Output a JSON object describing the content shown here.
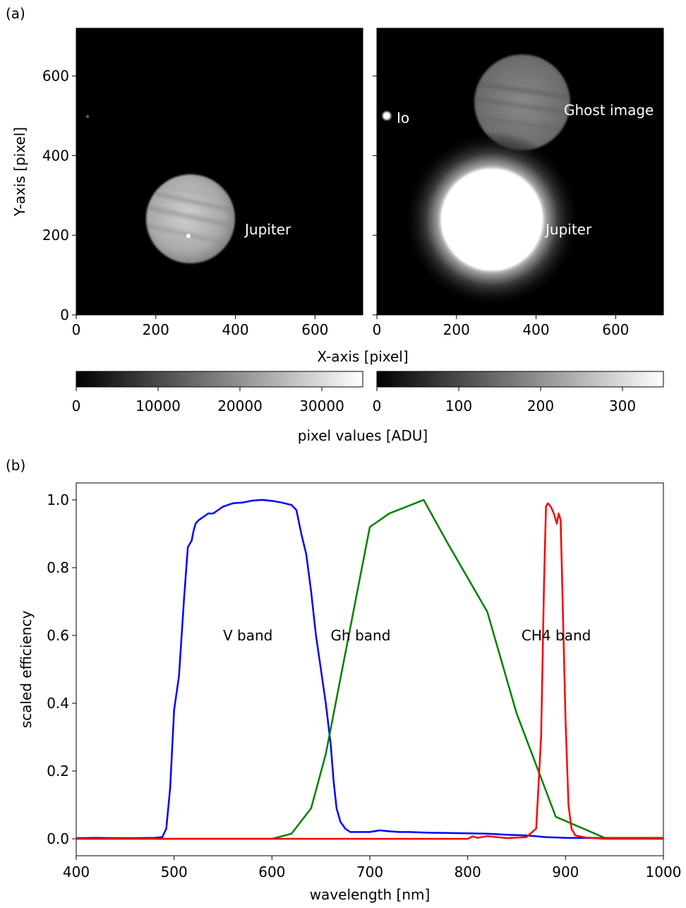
{
  "panel_a": {
    "label": "(a)",
    "xlabel": "X-axis [pixel]",
    "ylabel": "Y-axis [pixel]",
    "xlim": [
      0,
      720
    ],
    "ylim": [
      0,
      720
    ],
    "x_ticks": [
      0,
      200,
      400,
      600
    ],
    "y_ticks": [
      0,
      200,
      400,
      600
    ],
    "images": [
      {
        "description_labels": [
          {
            "text": "Jupiter"
          }
        ],
        "colorbar": {
          "range": [
            0,
            35000
          ],
          "ticks": [
            0,
            10000,
            20000,
            30000
          ],
          "tick_labels": [
            "0",
            "10000",
            "20000",
            "30000"
          ]
        }
      },
      {
        "description_labels": [
          {
            "text": "Io"
          },
          {
            "text": "Ghost image"
          },
          {
            "text": "Jupiter"
          }
        ],
        "colorbar": {
          "range": [
            0,
            350
          ],
          "ticks": [
            0,
            100,
            200,
            300
          ],
          "tick_labels": [
            "0",
            "100",
            "200",
            "300"
          ]
        }
      }
    ],
    "colorbar_label": "pixel values [ADU]"
  },
  "chart_data": [
    {
      "type": "line",
      "panel": "(b)",
      "xlabel": "wavelength [nm]",
      "ylabel": "scaled efficiency",
      "xlim": [
        400,
        1000
      ],
      "ylim": [
        -0.05,
        1.05
      ],
      "x_ticks": [
        400,
        500,
        600,
        700,
        800,
        900,
        1000
      ],
      "y_ticks": [
        0.0,
        0.2,
        0.4,
        0.6,
        0.8,
        1.0
      ],
      "y_tick_labels": [
        "0.0",
        "0.2",
        "0.4",
        "0.6",
        "0.8",
        "1.0"
      ],
      "grid": false,
      "annotations": [
        {
          "text": "V band",
          "x": 550,
          "y": 0.6
        },
        {
          "text": "Gh band",
          "x": 660,
          "y": 0.6
        },
        {
          "text": "CH4 band",
          "x": 855,
          "y": 0.6
        }
      ],
      "series": [
        {
          "color": "#0000ff",
          "x": [
            400,
            420,
            440,
            460,
            480,
            488,
            492,
            496,
            500,
            505,
            510,
            514,
            518,
            520,
            522,
            525,
            530,
            535,
            540,
            545,
            550,
            555,
            560,
            570,
            580,
            590,
            600,
            610,
            620,
            625,
            630,
            635,
            640,
            645,
            650,
            655,
            660,
            663,
            666,
            670,
            675,
            680,
            690,
            700,
            710,
            720,
            730,
            740,
            760,
            780,
            800,
            820,
            840,
            860,
            880,
            900,
            950,
            1000
          ],
          "y": [
            0.002,
            0.003,
            0.002,
            0.002,
            0.003,
            0.005,
            0.03,
            0.15,
            0.38,
            0.48,
            0.7,
            0.86,
            0.88,
            0.91,
            0.93,
            0.94,
            0.95,
            0.96,
            0.96,
            0.97,
            0.98,
            0.985,
            0.99,
            0.992,
            0.998,
            1.0,
            0.997,
            0.992,
            0.985,
            0.97,
            0.9,
            0.84,
            0.73,
            0.6,
            0.5,
            0.4,
            0.28,
            0.17,
            0.09,
            0.05,
            0.03,
            0.02,
            0.02,
            0.02,
            0.025,
            0.022,
            0.02,
            0.02,
            0.018,
            0.017,
            0.016,
            0.015,
            0.012,
            0.01,
            0.005,
            0.003,
            0.002,
            0.002
          ]
        },
        {
          "color": "#008000",
          "x": [
            400,
            600,
            620,
            640,
            655,
            700,
            720,
            755,
            780,
            820,
            850,
            890,
            940,
            1000
          ],
          "y": [
            0.0,
            0.0,
            0.015,
            0.09,
            0.25,
            0.92,
            0.96,
            1.0,
            0.87,
            0.67,
            0.37,
            0.065,
            0.003,
            0.003
          ]
        },
        {
          "color": "#ff0000",
          "x": [
            400,
            800,
            805,
            810,
            820,
            840,
            860,
            870,
            875,
            878,
            880,
            882,
            885,
            888,
            891,
            893,
            895,
            897,
            900,
            903,
            906,
            910,
            920,
            940,
            1000
          ],
          "y": [
            0.0,
            0.0,
            0.007,
            0.003,
            0.008,
            0.002,
            0.005,
            0.03,
            0.3,
            0.75,
            0.98,
            0.99,
            0.98,
            0.96,
            0.93,
            0.96,
            0.94,
            0.7,
            0.35,
            0.1,
            0.03,
            0.01,
            0.004,
            0.0,
            0.0
          ]
        }
      ]
    }
  ]
}
